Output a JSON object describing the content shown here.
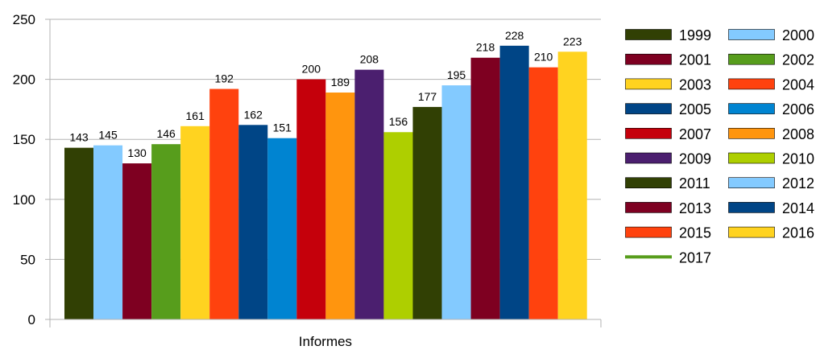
{
  "chart_data": {
    "type": "bar",
    "categories": [
      "Informes"
    ],
    "xlabel": "Informes",
    "ylim": [
      0,
      250
    ],
    "yticks": [
      0,
      50,
      100,
      150,
      200,
      250
    ],
    "grid": "horizontal",
    "legend_position": "right",
    "series": [
      {
        "name": "1999",
        "values": [
          143
        ],
        "color": "#314004"
      },
      {
        "name": "2000",
        "values": [
          145
        ],
        "color": "#83CAFF"
      },
      {
        "name": "2001",
        "values": [
          130
        ],
        "color": "#7E0021"
      },
      {
        "name": "2002",
        "values": [
          146
        ],
        "color": "#579D1C"
      },
      {
        "name": "2003",
        "values": [
          161
        ],
        "color": "#FFD320"
      },
      {
        "name": "2004",
        "values": [
          192
        ],
        "color": "#FF420E"
      },
      {
        "name": "2005",
        "values": [
          162
        ],
        "color": "#004586"
      },
      {
        "name": "2006",
        "values": [
          151
        ],
        "color": "#0084D1"
      },
      {
        "name": "2007",
        "values": [
          200
        ],
        "color": "#C5000B"
      },
      {
        "name": "2008",
        "values": [
          189
        ],
        "color": "#FF950E"
      },
      {
        "name": "2009",
        "values": [
          208
        ],
        "color": "#4B1F6F"
      },
      {
        "name": "2010",
        "values": [
          156
        ],
        "color": "#AECF00"
      },
      {
        "name": "2011",
        "values": [
          177
        ],
        "color": "#314004"
      },
      {
        "name": "2012",
        "values": [
          195
        ],
        "color": "#83CAFF"
      },
      {
        "name": "2013",
        "values": [
          218
        ],
        "color": "#7E0021"
      },
      {
        "name": "2014",
        "values": [
          228
        ],
        "color": "#004586"
      },
      {
        "name": "2015",
        "values": [
          210
        ],
        "color": "#FF420E"
      },
      {
        "name": "2016",
        "values": [
          223
        ],
        "color": "#FFD320"
      },
      {
        "name": "2017",
        "values": [
          null
        ],
        "color": "#579D1C",
        "legend_style": "line"
      }
    ]
  }
}
